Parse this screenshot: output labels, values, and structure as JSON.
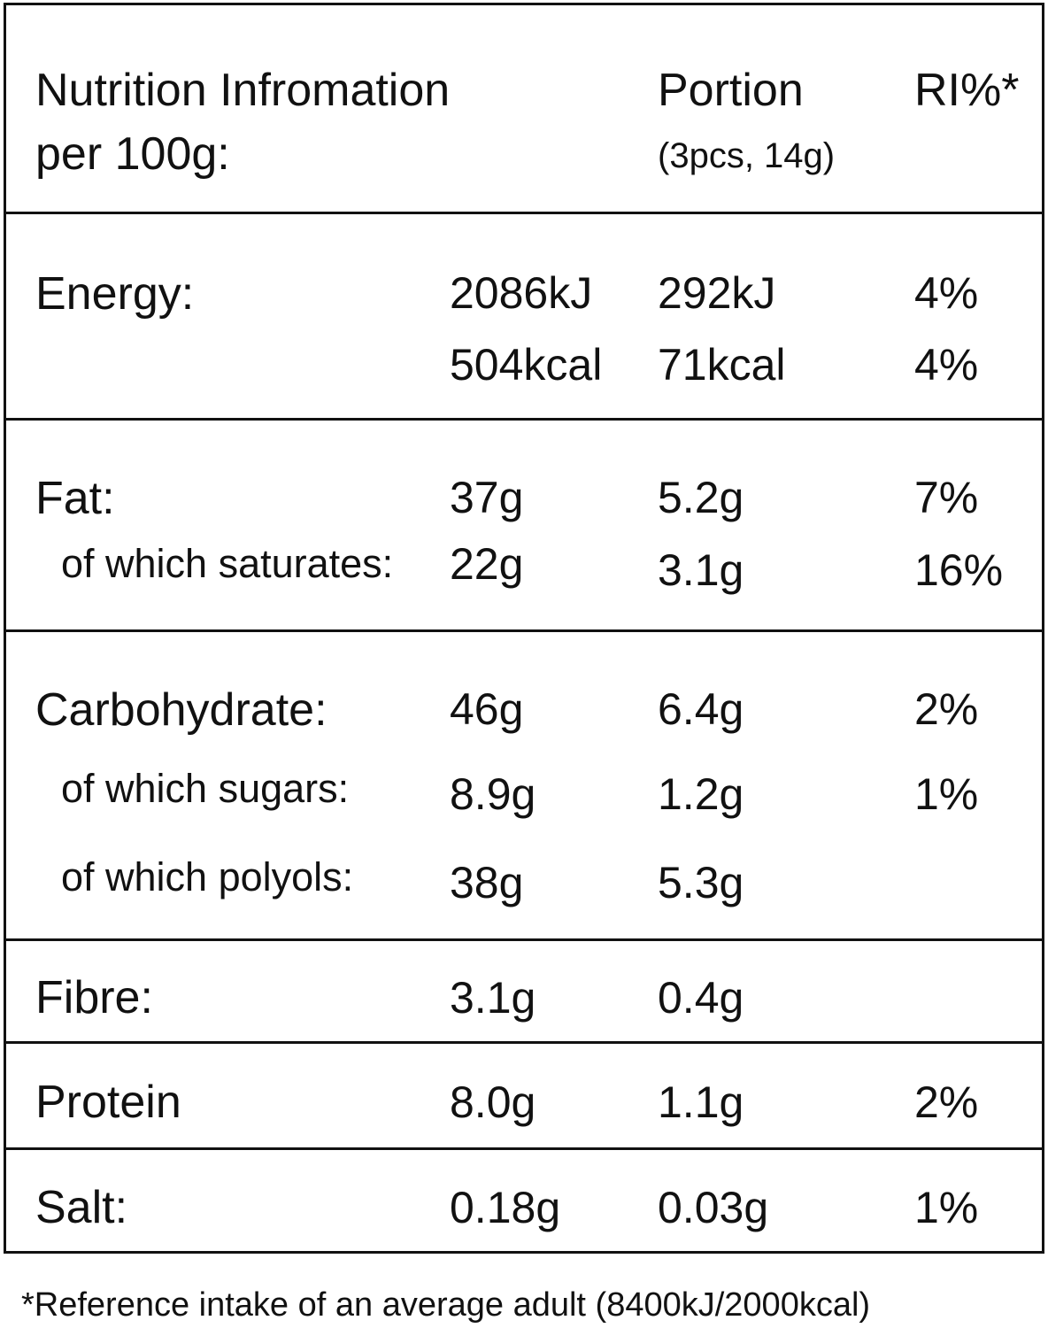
{
  "header": {
    "title_line1": "Nutrition Infromation",
    "title_line2": "per 100g:",
    "portion_label": "Portion",
    "portion_note": "(3pcs, 14g)",
    "ri_label": "RI%*"
  },
  "rows": {
    "energy": {
      "label": "Energy:",
      "per100_kj": "2086kJ",
      "per100_kcal": "504kcal",
      "portion_kj": "292kJ",
      "portion_kcal": "71kcal",
      "ri_kj": "4%",
      "ri_kcal": "4%"
    },
    "fat": {
      "label": "Fat:",
      "per100": "37g",
      "portion": "5.2g",
      "ri": "7%"
    },
    "saturates": {
      "label": "of which saturates:",
      "per100": "22g",
      "portion": "3.1g",
      "ri": "16%"
    },
    "carbohydrate": {
      "label": "Carbohydrate:",
      "per100": "46g",
      "portion": "6.4g",
      "ri": "2%"
    },
    "sugars": {
      "label": "of which sugars:",
      "per100": "8.9g",
      "portion": "1.2g",
      "ri": "1%"
    },
    "polyols": {
      "label": "of which polyols:",
      "per100": "38g",
      "portion": "5.3g"
    },
    "fibre": {
      "label": "Fibre:",
      "per100": "3.1g",
      "portion": "0.4g"
    },
    "protein": {
      "label": "Protein",
      "per100": "8.0g",
      "portion": "1.1g",
      "ri": "2%"
    },
    "salt": {
      "label": "Salt:",
      "per100": "0.18g",
      "portion": "0.03g",
      "ri": "1%"
    }
  },
  "footnote": "*Reference intake of an average adult (8400kJ/2000kcal)"
}
